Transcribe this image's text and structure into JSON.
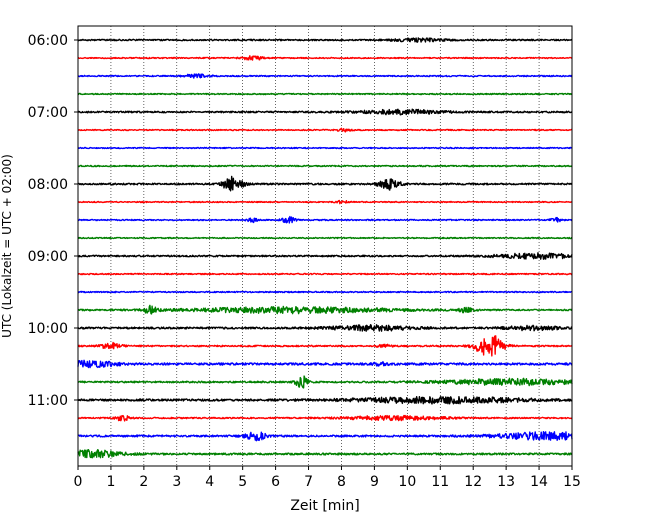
{
  "chart_data": {
    "type": "line",
    "title": "",
    "xlabel": "Zeit  [min]",
    "ylabel": "UTC (Lokalzeit = UTC + 02:00)",
    "xlim": [
      0,
      15
    ],
    "x_ticks": [
      "0",
      "1",
      "2",
      "3",
      "4",
      "5",
      "6",
      "7",
      "8",
      "9",
      "10",
      "11",
      "12",
      "13",
      "14",
      "15"
    ],
    "y_ticks": [
      "06:00",
      "07:00",
      "08:00",
      "09:00",
      "10:00",
      "11:00"
    ],
    "grid_x": true,
    "grid_x_style": "dotted",
    "trace_interval_min": 15,
    "start_time": "06:00",
    "color_cycle": [
      "#000000",
      "#ff0000",
      "#0000ff",
      "#008000"
    ],
    "traces": [
      {
        "time": "06:00",
        "noise": 0.7,
        "events": [
          {
            "t": 10.3,
            "amp": 1.5,
            "dur": 0.8
          }
        ]
      },
      {
        "time": "06:15",
        "noise": 0.55,
        "events": [
          {
            "t": 5.3,
            "amp": 2.2,
            "dur": 0.3
          }
        ]
      },
      {
        "time": "06:30",
        "noise": 0.6,
        "events": [
          {
            "t": 3.6,
            "amp": 1.8,
            "dur": 0.4
          }
        ]
      },
      {
        "time": "06:45",
        "noise": 0.6,
        "events": []
      },
      {
        "time": "07:00",
        "noise": 0.8,
        "events": [
          {
            "t": 9.8,
            "amp": 2.2,
            "dur": 1.2
          }
        ]
      },
      {
        "time": "07:15",
        "noise": 0.55,
        "events": [
          {
            "t": 8.1,
            "amp": 1.6,
            "dur": 0.2
          }
        ]
      },
      {
        "time": "07:30",
        "noise": 0.55,
        "events": []
      },
      {
        "time": "07:45",
        "noise": 0.6,
        "events": []
      },
      {
        "time": "08:00",
        "noise": 0.8,
        "events": [
          {
            "t": 4.7,
            "amp": 7.0,
            "dur": 0.3
          },
          {
            "t": 9.45,
            "amp": 5.5,
            "dur": 0.3
          }
        ]
      },
      {
        "time": "08:15",
        "noise": 0.55,
        "events": [
          {
            "t": 8.0,
            "amp": 1.5,
            "dur": 0.2
          }
        ]
      },
      {
        "time": "08:30",
        "noise": 0.6,
        "events": [
          {
            "t": 6.4,
            "amp": 3.0,
            "dur": 0.2
          },
          {
            "t": 5.3,
            "amp": 2.0,
            "dur": 0.15
          },
          {
            "t": 14.5,
            "amp": 2.0,
            "dur": 0.2
          }
        ]
      },
      {
        "time": "08:45",
        "noise": 0.55,
        "events": []
      },
      {
        "time": "09:00",
        "noise": 0.75,
        "events": [
          {
            "t": 14.0,
            "amp": 2.5,
            "dur": 1.3
          }
        ]
      },
      {
        "time": "09:15",
        "noise": 0.6,
        "events": []
      },
      {
        "time": "09:30",
        "noise": 0.6,
        "events": []
      },
      {
        "time": "09:45",
        "noise": 0.7,
        "events": [
          {
            "t": 6.5,
            "amp": 3.0,
            "dur": 3.0
          },
          {
            "t": 2.2,
            "amp": 4.0,
            "dur": 0.2
          },
          {
            "t": 11.8,
            "amp": 3.0,
            "dur": 0.2
          }
        ]
      },
      {
        "time": "10:00",
        "noise": 0.9,
        "events": [
          {
            "t": 8.9,
            "amp": 2.5,
            "dur": 1.2
          },
          {
            "t": 13.8,
            "amp": 2.0,
            "dur": 0.8
          }
        ]
      },
      {
        "time": "10:15",
        "noise": 0.7,
        "events": [
          {
            "t": 12.5,
            "amp": 12.0,
            "dur": 0.4
          },
          {
            "t": 1.0,
            "amp": 3.0,
            "dur": 0.3
          },
          {
            "t": 9.3,
            "amp": 1.5,
            "dur": 0.2
          }
        ]
      },
      {
        "time": "10:30",
        "noise": 1.1,
        "events": [
          {
            "t": 0.3,
            "amp": 3.0,
            "dur": 0.8
          },
          {
            "t": 9.2,
            "amp": 1.5,
            "dur": 0.2
          }
        ]
      },
      {
        "time": "10:45",
        "noise": 0.8,
        "events": [
          {
            "t": 13.2,
            "amp": 3.0,
            "dur": 2.0
          },
          {
            "t": 6.8,
            "amp": 6.0,
            "dur": 0.2
          }
        ]
      },
      {
        "time": "11:00",
        "noise": 1.0,
        "events": [
          {
            "t": 11.0,
            "amp": 3.0,
            "dur": 2.5
          }
        ]
      },
      {
        "time": "11:15",
        "noise": 0.65,
        "events": [
          {
            "t": 1.35,
            "amp": 3.0,
            "dur": 0.2
          },
          {
            "t": 9.6,
            "amp": 2.0,
            "dur": 1.5
          }
        ]
      },
      {
        "time": "11:30",
        "noise": 0.9,
        "events": [
          {
            "t": 5.4,
            "amp": 4.0,
            "dur": 0.3
          },
          {
            "t": 14.3,
            "amp": 3.5,
            "dur": 1.6
          }
        ]
      },
      {
        "time": "11:45",
        "noise": 0.9,
        "events": [
          {
            "t": 0.4,
            "amp": 3.5,
            "dur": 0.9
          }
        ]
      }
    ]
  }
}
